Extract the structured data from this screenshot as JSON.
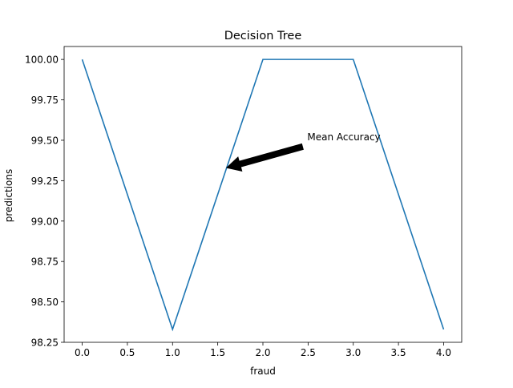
{
  "chart_data": {
    "type": "line",
    "title": "Decision Tree",
    "xlabel": "fraud",
    "ylabel": "predictions",
    "xlim": [
      -0.2,
      4.2
    ],
    "ylim": [
      98.25,
      100.08
    ],
    "xticks": [
      0.0,
      0.5,
      1.0,
      1.5,
      2.0,
      2.5,
      3.0,
      3.5,
      4.0
    ],
    "xtick_labels": [
      "0.0",
      "0.5",
      "1.0",
      "1.5",
      "2.0",
      "2.5",
      "3.0",
      "3.5",
      "4.0"
    ],
    "yticks": [
      98.25,
      98.5,
      98.75,
      99.0,
      99.25,
      99.5,
      99.75,
      100.0
    ],
    "ytick_labels": [
      "98.25",
      "98.50",
      "98.75",
      "99.00",
      "99.25",
      "99.50",
      "99.75",
      "100.00"
    ],
    "series": [
      {
        "x": [
          0,
          1,
          2,
          3,
          4
        ],
        "values": [
          100.0,
          98.33,
          100.0,
          100.0,
          98.33
        ],
        "color": "#1f77b4"
      }
    ],
    "annotations": [
      {
        "text": "Mean Accuracy",
        "xy": [
          1.6,
          99.33
        ],
        "xytext": [
          2.5,
          99.5
        ],
        "arrow_color": "#000000"
      }
    ],
    "grid": false
  }
}
